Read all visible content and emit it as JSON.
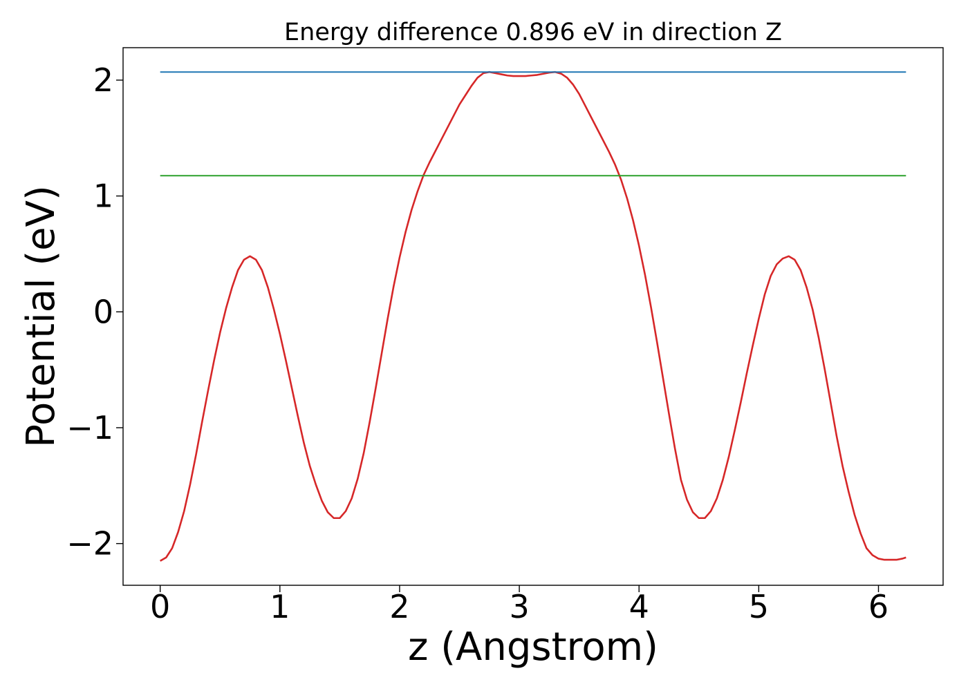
{
  "chart_data": {
    "type": "line",
    "title": "Energy difference 0.896 eV in direction Z",
    "xlabel": "z (Angstrom)",
    "ylabel": "Potential (eV)",
    "xlim": [
      -0.31,
      6.54
    ],
    "ylim": [
      -2.36,
      2.28
    ],
    "x_ticks": [
      0,
      1,
      2,
      3,
      4,
      5,
      6
    ],
    "x_tick_labels": [
      "0",
      "1",
      "2",
      "3",
      "4",
      "5",
      "6"
    ],
    "y_ticks": [
      -2,
      -1,
      0,
      1,
      2
    ],
    "y_tick_labels": [
      "−2",
      "−1",
      "0",
      "1",
      "2"
    ],
    "grid": false,
    "series": [
      {
        "color": "#d62728",
        "x": [
          0.0,
          0.05,
          0.1,
          0.15,
          0.2,
          0.25,
          0.3,
          0.35,
          0.4,
          0.45,
          0.5,
          0.55,
          0.6,
          0.65,
          0.7,
          0.75,
          0.8,
          0.85,
          0.9,
          0.95,
          1.0,
          1.05,
          1.1,
          1.15,
          1.2,
          1.25,
          1.3,
          1.35,
          1.4,
          1.45,
          1.5,
          1.55,
          1.6,
          1.65,
          1.7,
          1.75,
          1.8,
          1.85,
          1.9,
          1.95,
          2.0,
          2.05,
          2.1,
          2.15,
          2.2,
          2.25,
          2.3,
          2.35,
          2.4,
          2.45,
          2.5,
          2.55,
          2.6,
          2.65,
          2.7,
          2.75,
          2.8,
          2.85,
          2.9,
          2.95,
          3.0,
          3.05,
          3.1,
          3.15,
          3.2,
          3.25,
          3.3,
          3.35,
          3.4,
          3.45,
          3.5,
          3.55,
          3.6,
          3.65,
          3.7,
          3.75,
          3.8,
          3.85,
          3.9,
          3.95,
          4.0,
          4.05,
          4.1,
          4.15,
          4.2,
          4.25,
          4.3,
          4.35,
          4.4,
          4.45,
          4.5,
          4.55,
          4.6,
          4.65,
          4.7,
          4.75,
          4.8,
          4.85,
          4.9,
          4.95,
          5.0,
          5.05,
          5.1,
          5.15,
          5.2,
          5.25,
          5.3,
          5.35,
          5.4,
          5.45,
          5.5,
          5.55,
          5.6,
          5.65,
          5.7,
          5.75,
          5.8,
          5.85,
          5.9,
          5.95,
          6.0,
          6.05,
          6.1,
          6.15,
          6.2,
          6.23
        ],
        "y": [
          -2.15,
          -2.12,
          -2.04,
          -1.9,
          -1.72,
          -1.49,
          -1.23,
          -0.95,
          -0.68,
          -0.42,
          -0.18,
          0.03,
          0.21,
          0.36,
          0.45,
          0.48,
          0.45,
          0.36,
          0.21,
          0.02,
          -0.19,
          -0.42,
          -0.66,
          -0.9,
          -1.13,
          -1.33,
          -1.49,
          -1.63,
          -1.73,
          -1.78,
          -1.78,
          -1.72,
          -1.61,
          -1.44,
          -1.22,
          -0.95,
          -0.66,
          -0.36,
          -0.06,
          0.22,
          0.47,
          0.69,
          0.88,
          1.04,
          1.18,
          1.29,
          1.39,
          1.49,
          1.59,
          1.69,
          1.79,
          1.87,
          1.95,
          2.02,
          2.06,
          2.07,
          2.06,
          2.05,
          2.04,
          2.035,
          2.035,
          2.035,
          2.04,
          2.045,
          2.055,
          2.065,
          2.07,
          2.055,
          2.02,
          1.96,
          1.88,
          1.78,
          1.68,
          1.58,
          1.48,
          1.38,
          1.27,
          1.14,
          0.98,
          0.79,
          0.57,
          0.32,
          0.04,
          -0.26,
          -0.57,
          -0.88,
          -1.18,
          -1.45,
          -1.62,
          -1.73,
          -1.78,
          -1.78,
          -1.72,
          -1.61,
          -1.45,
          -1.25,
          -1.02,
          -0.78,
          -0.53,
          -0.29,
          -0.06,
          0.15,
          0.31,
          0.41,
          0.46,
          0.48,
          0.45,
          0.36,
          0.21,
          0.02,
          -0.22,
          -0.49,
          -0.78,
          -1.07,
          -1.33,
          -1.55,
          -1.75,
          -1.91,
          -2.04,
          -2.1,
          -2.13,
          -2.14,
          -2.14,
          -2.14,
          -2.13,
          -2.12
        ]
      },
      {
        "color": "#1f77b4",
        "x": [
          0.0,
          6.23
        ],
        "y": [
          2.07,
          2.07
        ]
      },
      {
        "color": "#2ca02c",
        "x": [
          0.0,
          6.23
        ],
        "y": [
          1.175,
          1.175
        ]
      }
    ]
  }
}
